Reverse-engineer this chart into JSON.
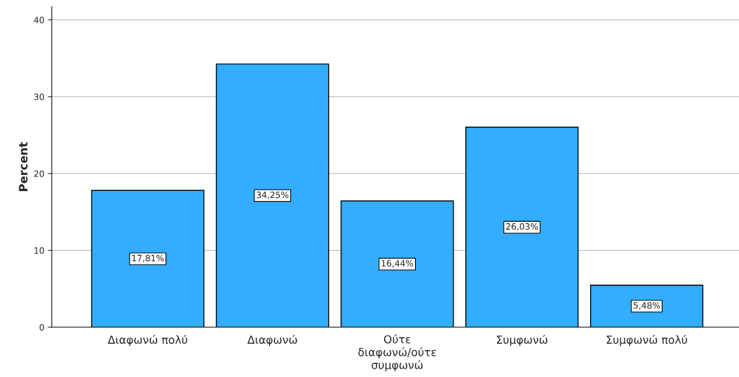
{
  "chart_data": {
    "type": "bar",
    "ylabel": "Percent",
    "categories": [
      "Διαφωνώ πολύ",
      "Διαφωνώ",
      "Ούτε\nδιαφωνώ/ούτε\nσυμφωνώ",
      "Συμφωνώ",
      "Συμφωνώ πολύ"
    ],
    "values": [
      17.81,
      34.25,
      16.44,
      26.03,
      5.48
    ],
    "value_labels": [
      "17,81%",
      "34,25%",
      "16,44%",
      "26,03%",
      "5,48%"
    ],
    "color": "#33adff",
    "ylim": [
      0,
      41.7
    ],
    "yticks": [
      0,
      10,
      20,
      30,
      40
    ],
    "grid": "y"
  }
}
